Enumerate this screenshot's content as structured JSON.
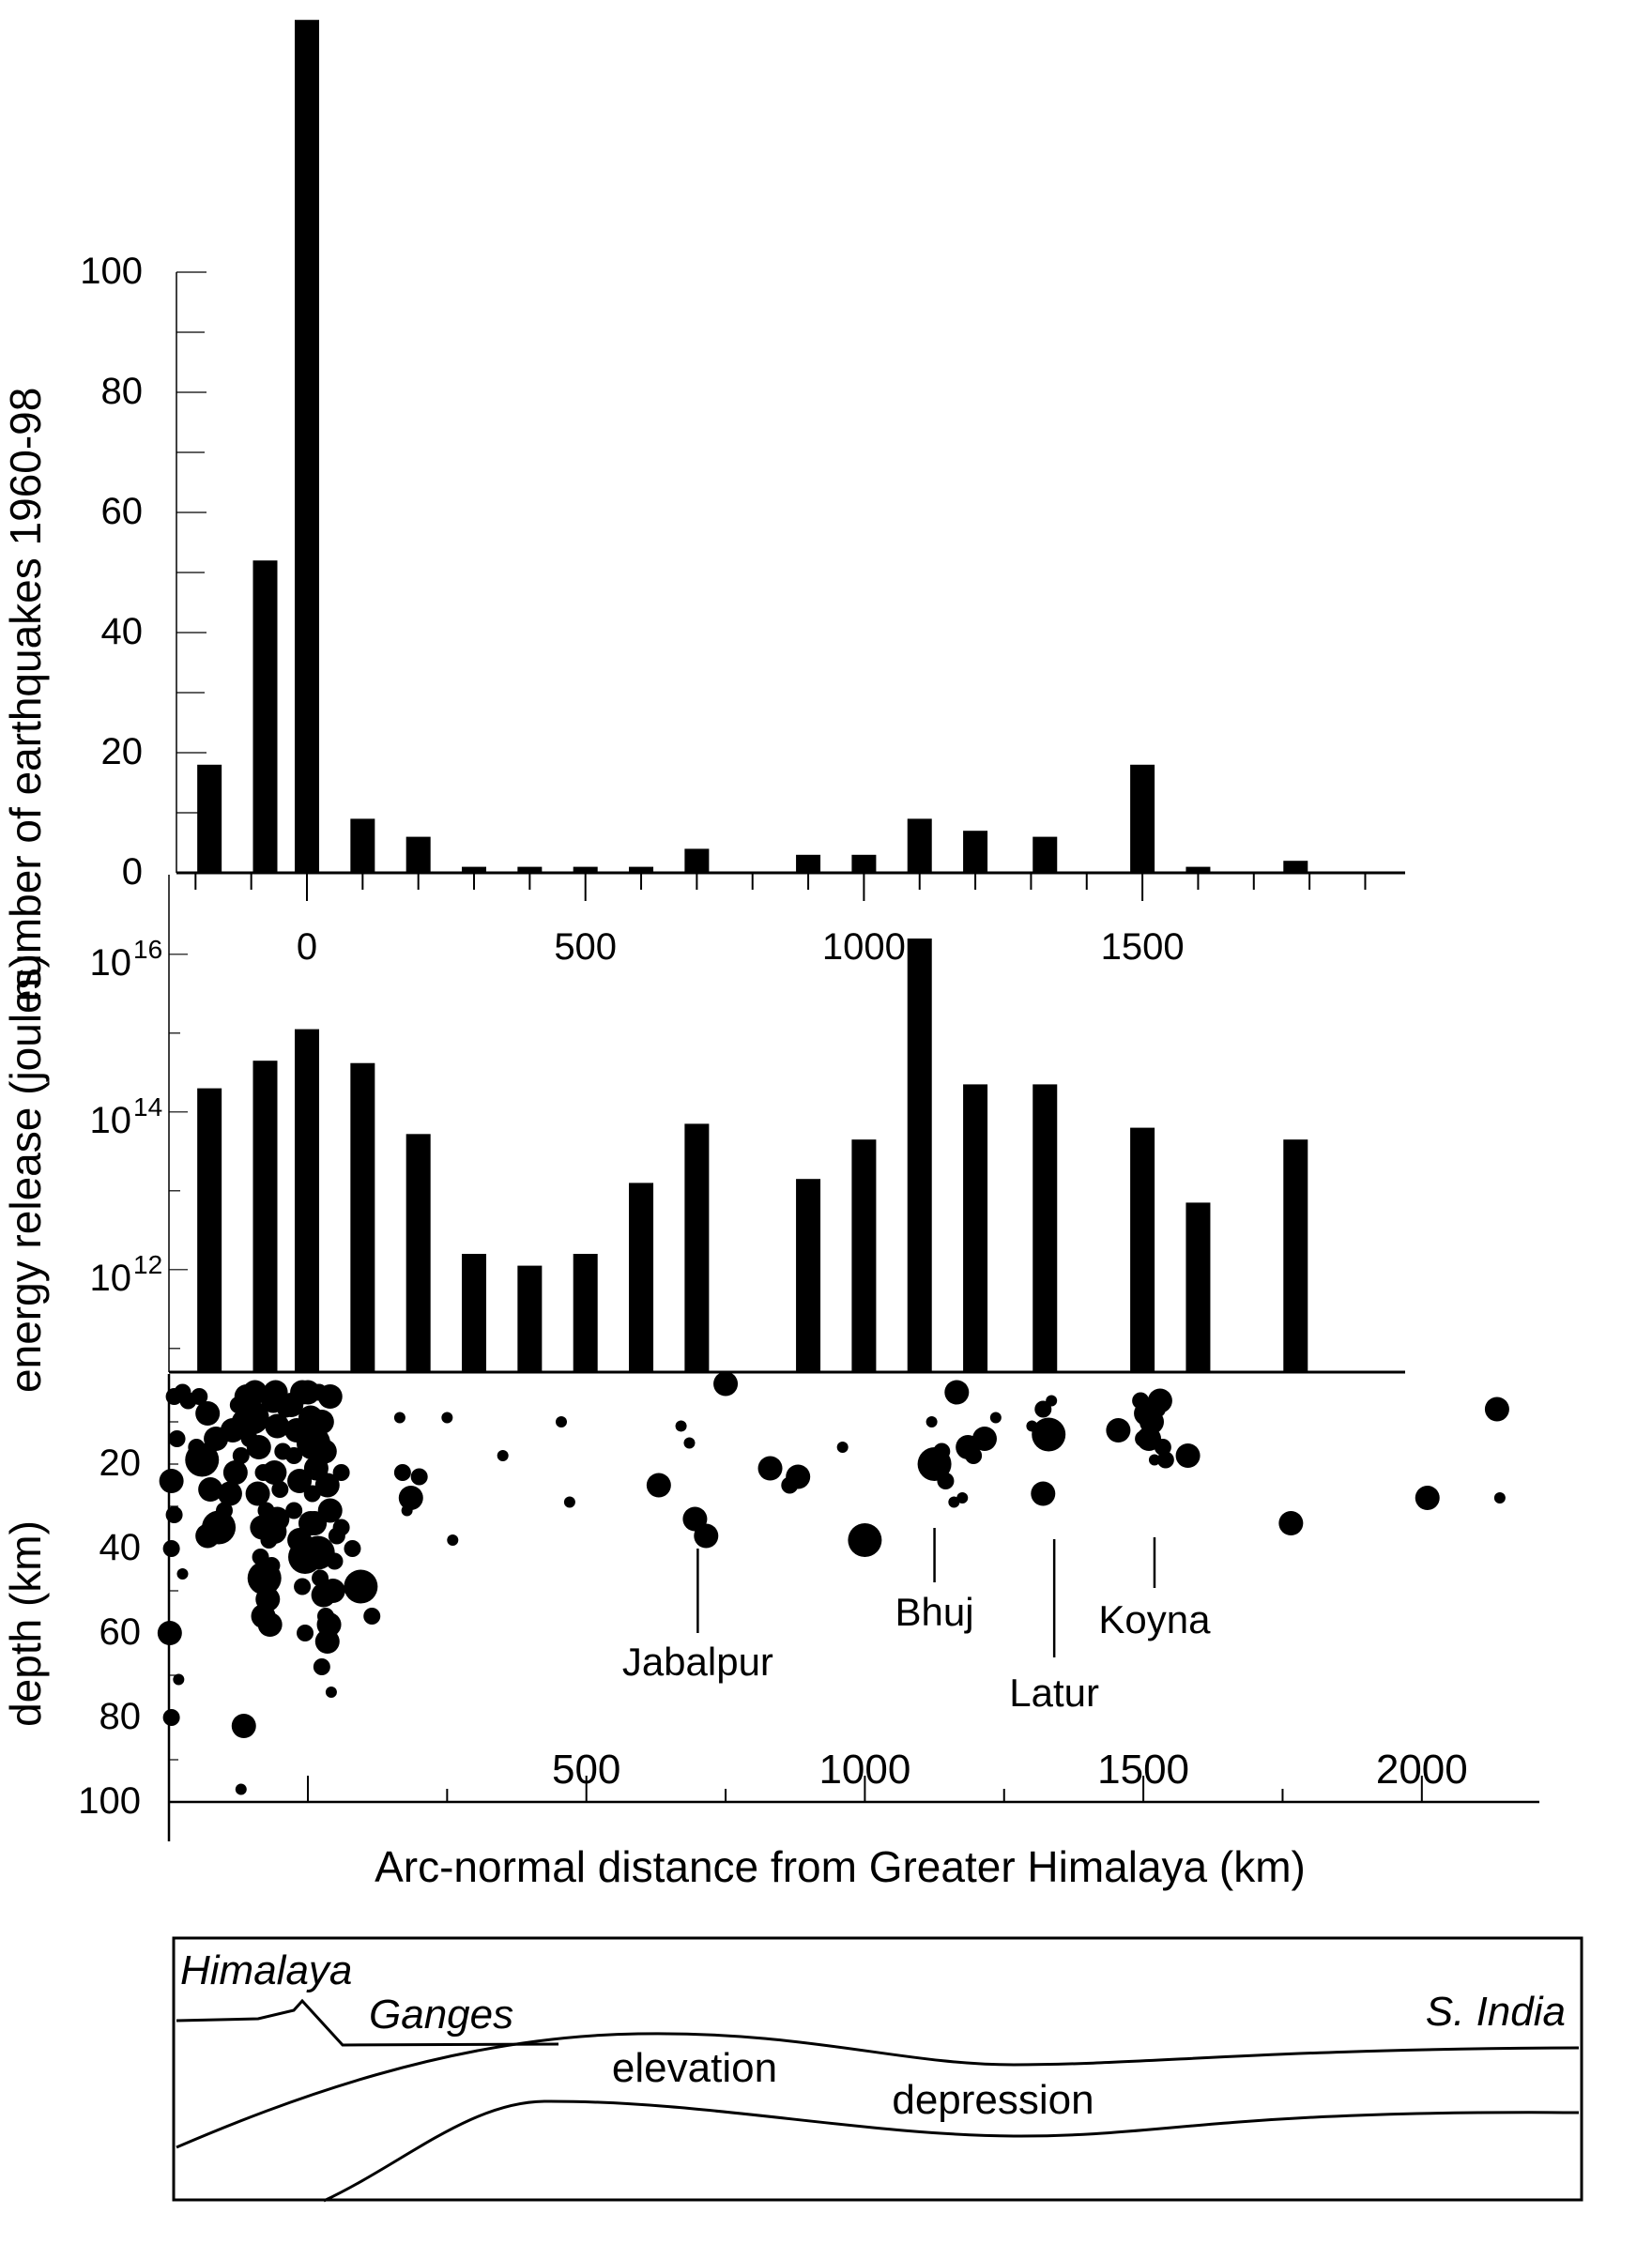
{
  "chart_data": [
    {
      "type": "bar",
      "id": "count-histogram",
      "ylabel": "number of earthquakes 1960-98",
      "ylim": [
        0,
        142
      ],
      "yticks": [
        "0",
        "20",
        "40",
        "60",
        "80",
        "100"
      ],
      "xticks": [
        "0",
        "500",
        "1000",
        "1500"
      ],
      "x": [
        -175,
        -75,
        0,
        100,
        200,
        300,
        400,
        500,
        600,
        700,
        900,
        1000,
        1100,
        1200,
        1325,
        1500,
        1600,
        1775
      ],
      "values": [
        18,
        52,
        142,
        9,
        6,
        1,
        1,
        1,
        1,
        4,
        3,
        3,
        9,
        7,
        6,
        18,
        1,
        2
      ]
    },
    {
      "type": "bar",
      "id": "energy-histogram",
      "ylabel": "energy release (joules)",
      "yscale": "log",
      "ylim_exponent": [
        10.7,
        16.2
      ],
      "ytick_base": "10",
      "ytick_exponents": [
        "12",
        "14",
        "16"
      ],
      "x": [
        -175,
        -75,
        0,
        100,
        200,
        300,
        400,
        500,
        600,
        700,
        900,
        1000,
        1100,
        1200,
        1325,
        1500,
        1600,
        1775
      ],
      "values_log10": [
        14.3,
        14.65,
        15.05,
        14.62,
        13.72,
        12.2,
        12.05,
        12.2,
        13.1,
        13.85,
        13.15,
        13.65,
        16.2,
        14.35,
        14.35,
        13.8,
        12.85,
        13.65
      ]
    },
    {
      "type": "scatter",
      "id": "depth-scatter",
      "ylabel": "depth (km)",
      "xlabel": "Arc-normal distance from Greater Himalaya (km)",
      "xlim": [
        -250,
        2200
      ],
      "ylim": [
        0,
        100
      ],
      "yticks": [
        "20",
        "40",
        "60",
        "80",
        "100"
      ],
      "xticks": [
        "500",
        "1000",
        "1500",
        "2000"
      ],
      "points": [
        [
          -240,
          4,
          1
        ],
        [
          -225,
          3,
          1
        ],
        [
          -215,
          5,
          1
        ],
        [
          -235,
          14,
          1
        ],
        [
          -245,
          24,
          2
        ],
        [
          -240,
          32,
          1
        ],
        [
          -245,
          40,
          1
        ],
        [
          -225,
          46,
          0
        ],
        [
          -248,
          60,
          2
        ],
        [
          -232,
          71,
          0
        ],
        [
          -245,
          80,
          1
        ],
        [
          -195,
          4,
          1
        ],
        [
          -180,
          8,
          2
        ],
        [
          -165,
          14,
          2
        ],
        [
          -200,
          16,
          1
        ],
        [
          -190,
          19,
          3
        ],
        [
          -175,
          26,
          2
        ],
        [
          -180,
          37,
          2
        ],
        [
          -160,
          35,
          3
        ],
        [
          -150,
          31,
          1
        ],
        [
          -140,
          27,
          2
        ],
        [
          -130,
          22,
          2
        ],
        [
          -135,
          12,
          2
        ],
        [
          -120,
          18,
          1
        ],
        [
          -115,
          10,
          2
        ],
        [
          -125,
          6,
          1
        ],
        [
          -110,
          4,
          2
        ],
        [
          -95,
          3,
          2
        ],
        [
          -100,
          9,
          3
        ],
        [
          -105,
          14,
          1
        ],
        [
          -88,
          16,
          2
        ],
        [
          -80,
          22,
          1
        ],
        [
          -90,
          27,
          2
        ],
        [
          -75,
          31,
          1
        ],
        [
          -82,
          35,
          2
        ],
        [
          -70,
          38,
          1
        ],
        [
          -60,
          36,
          2
        ],
        [
          -85,
          42,
          1
        ],
        [
          -78,
          47,
          3
        ],
        [
          -72,
          52,
          2
        ],
        [
          -80,
          56,
          2
        ],
        [
          -68,
          58,
          2
        ],
        [
          -65,
          44,
          1
        ],
        [
          -55,
          33,
          2
        ],
        [
          -50,
          26,
          1
        ],
        [
          -60,
          22,
          2
        ],
        [
          -45,
          17,
          1
        ],
        [
          -55,
          11,
          2
        ],
        [
          -40,
          7,
          1
        ],
        [
          -62,
          5,
          2
        ],
        [
          -58,
          3,
          2
        ],
        [
          -30,
          6,
          2
        ],
        [
          -20,
          12,
          2
        ],
        [
          -25,
          18,
          1
        ],
        [
          -15,
          24,
          2
        ],
        [
          -25,
          31,
          1
        ],
        [
          -15,
          38,
          2
        ],
        [
          -5,
          42,
          3
        ],
        [
          -10,
          49,
          1
        ],
        [
          -5,
          60,
          1
        ],
        [
          0,
          3,
          2
        ],
        [
          5,
          9,
          2
        ],
        [
          10,
          15,
          3
        ],
        [
          15,
          21,
          2
        ],
        [
          8,
          27,
          1
        ],
        [
          12,
          34,
          2
        ],
        [
          18,
          41,
          3
        ],
        [
          22,
          47,
          1
        ],
        [
          28,
          51,
          2
        ],
        [
          32,
          56,
          1
        ],
        [
          35,
          62,
          2
        ],
        [
          25,
          68,
          1
        ],
        [
          42,
          74,
          0
        ],
        [
          38,
          58,
          2
        ],
        [
          45,
          50,
          2
        ],
        [
          48,
          43,
          1
        ],
        [
          52,
          37,
          1
        ],
        [
          40,
          31,
          2
        ],
        [
          35,
          25,
          2
        ],
        [
          30,
          17,
          2
        ],
        [
          25,
          10,
          2
        ],
        [
          40,
          4,
          2
        ],
        [
          20,
          3,
          1
        ],
        [
          -10,
          3,
          2
        ],
        [
          5,
          34,
          2
        ],
        [
          60,
          35,
          1
        ],
        [
          -120,
          97,
          0
        ],
        [
          -115,
          82,
          2
        ],
        [
          95,
          49,
          3
        ],
        [
          115,
          56,
          1
        ],
        [
          80,
          40,
          1
        ],
        [
          60,
          22,
          1
        ],
        [
          165,
          9,
          0
        ],
        [
          170,
          22,
          1
        ],
        [
          185,
          28,
          2
        ],
        [
          200,
          23,
          1
        ],
        [
          178,
          31,
          0
        ],
        [
          250,
          9,
          0
        ],
        [
          260,
          38,
          0
        ],
        [
          350,
          18,
          0
        ],
        [
          455,
          10,
          0
        ],
        [
          470,
          29,
          0
        ],
        [
          630,
          25,
          2
        ],
        [
          670,
          11,
          0
        ],
        [
          685,
          15,
          0
        ],
        [
          695,
          33,
          2
        ],
        [
          715,
          37,
          2
        ],
        [
          750,
          1,
          2
        ],
        [
          830,
          21,
          2
        ],
        [
          865,
          25,
          1
        ],
        [
          880,
          23,
          2
        ],
        [
          960,
          16,
          0
        ],
        [
          1000,
          38,
          3
        ],
        [
          1120,
          10,
          0
        ],
        [
          1125,
          20,
          3
        ],
        [
          1138,
          17,
          1
        ],
        [
          1145,
          24,
          1
        ],
        [
          1160,
          29,
          0
        ],
        [
          1165,
          3,
          2
        ],
        [
          1175,
          28,
          0
        ],
        [
          1185,
          16,
          2
        ],
        [
          1195,
          18,
          1
        ],
        [
          1215,
          14,
          2
        ],
        [
          1235,
          9,
          0
        ],
        [
          1300,
          11,
          0
        ],
        [
          1320,
          7,
          1
        ],
        [
          1330,
          13,
          3
        ],
        [
          1335,
          5,
          0
        ],
        [
          1320,
          27,
          2
        ],
        [
          1455,
          12,
          2
        ],
        [
          1495,
          5,
          1
        ],
        [
          1505,
          8,
          2
        ],
        [
          1515,
          10,
          2
        ],
        [
          1525,
          7,
          1
        ],
        [
          1510,
          14,
          2
        ],
        [
          1535,
          16,
          1
        ],
        [
          1520,
          19,
          0
        ],
        [
          1540,
          19,
          1
        ],
        [
          1500,
          14,
          1
        ],
        [
          1530,
          5,
          2
        ],
        [
          1580,
          18,
          2
        ],
        [
          1765,
          34,
          2
        ],
        [
          2010,
          28,
          2
        ],
        [
          2135,
          7,
          2
        ],
        [
          2140,
          28,
          0
        ]
      ],
      "size_legend_note": "",
      "place_labels": [
        {
          "text": "Jabalpur",
          "x": 700
        },
        {
          "text": "Bhuj",
          "x": 1125
        },
        {
          "text": "Latur",
          "x": 1340
        },
        {
          "text": "Koyna",
          "x": 1520
        }
      ]
    }
  ],
  "cross_section": {
    "label_himalaya": "Himalaya",
    "label_ganges": "Ganges",
    "label_s_india": "S. India",
    "label_elevation": "elevation",
    "label_depression": "depression"
  }
}
